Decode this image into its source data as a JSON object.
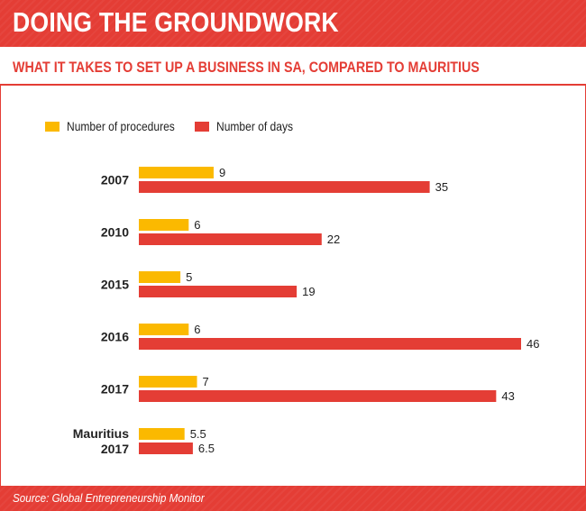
{
  "header": {
    "title": "DOING THE GROUNDWORK",
    "subtitle": "WHAT IT TAKES TO SET UP A BUSINESS IN SA, COMPARED TO MAURITIUS"
  },
  "footer": {
    "source": "Source: Global Entrepreneurship Monitor"
  },
  "colors": {
    "accent": "#e43d35",
    "procedures": "#fbb900",
    "days": "#e43d35"
  },
  "chart_data": {
    "type": "bar",
    "orientation": "horizontal",
    "categories": [
      "2007",
      "2010",
      "2015",
      "2016",
      "2017",
      "Mauritius 2017"
    ],
    "category_lines": [
      [
        "2007"
      ],
      [
        "2010"
      ],
      [
        "2015"
      ],
      [
        "2016"
      ],
      [
        "2017"
      ],
      [
        "Mauritius",
        "2017"
      ]
    ],
    "series": [
      {
        "name": "Number of procedures",
        "color": "#fbb900",
        "values": [
          9,
          6,
          5,
          6,
          7,
          5.5
        ]
      },
      {
        "name": "Number of days",
        "color": "#e43d35",
        "values": [
          35,
          22,
          19,
          46,
          43,
          6.5
        ]
      }
    ],
    "xlim": [
      0,
      46
    ],
    "grid": false,
    "axis_ticks": false,
    "legend_position": "top-left"
  }
}
